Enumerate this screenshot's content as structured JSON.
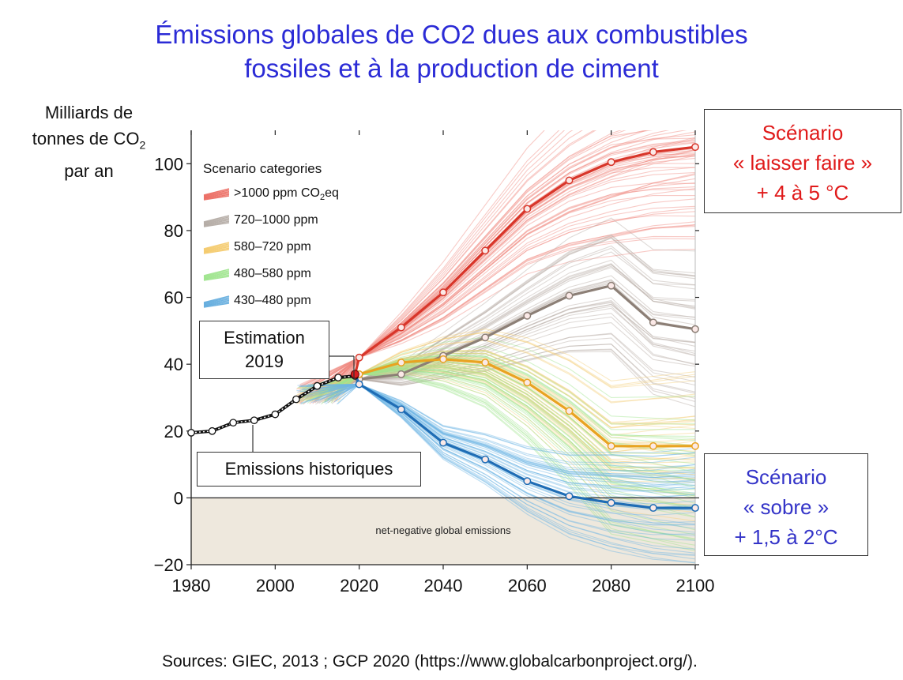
{
  "title_line1": "Émissions globales de CO2 dues aux combustibles",
  "title_line2": "fossiles et à la production de ciment",
  "ylabel_line1": "Milliards de",
  "ylabel_line2": "tonnes de CO",
  "ylabel_sub": "2",
  "ylabel_line3": "par an",
  "estimation_line1": "Estimation",
  "estimation_line2": "2019",
  "historic_label": "Emissions historiques",
  "laisser_faire_line1": "Scénario",
  "laisser_faire_line2": "« laisser faire »",
  "laisser_faire_line3": "+ 4 à 5 °C",
  "sobre_line1": "Scénario",
  "sobre_line2": "« sobre »",
  "sobre_line3": "+ 1,5 à 2°C",
  "net_negative_label": "net-negative global emissions",
  "legend_title": "Scenario categories",
  "source": "Sources: GIEC, 2013 ; GCP 2020 (https://www.globalcarbonproject.org/).",
  "chart_data": {
    "type": "line",
    "xlim": [
      1980,
      2100
    ],
    "ylim": [
      -20,
      110
    ],
    "xticks": [
      1980,
      2000,
      2020,
      2040,
      2060,
      2080,
      2100
    ],
    "yticks": [
      -20,
      0,
      20,
      40,
      60,
      80,
      100
    ],
    "ytick_labels": [
      "−20",
      "0",
      "20",
      "40",
      "60",
      "80",
      "100"
    ],
    "grid": false,
    "legend_position": "top-left",
    "legend": [
      {
        "label": ">1000 ppm CO",
        "sub": "2",
        "suffix": "eq",
        "color": "#e8554a"
      },
      {
        "label": "720–1000 ppm",
        "sub": "",
        "suffix": "",
        "color": "#a89e96"
      },
      {
        "label": "580–720 ppm",
        "sub": "",
        "suffix": "",
        "color": "#f2c255"
      },
      {
        "label": "480–580 ppm",
        "sub": "",
        "suffix": "",
        "color": "#8fe07a"
      },
      {
        "label": "430–480 ppm",
        "sub": "",
        "suffix": "",
        "color": "#4a9fd8"
      }
    ],
    "historical": {
      "name": "Emissions historiques",
      "x": [
        1980,
        1985,
        1990,
        1995,
        2000,
        2005,
        2010,
        2015,
        2019
      ],
      "y": [
        19.5,
        20,
        22.5,
        23.2,
        25,
        29.5,
        33.5,
        36,
        36.5
      ]
    },
    "series": [
      {
        "category": ">1000 ppm CO2eq",
        "color": "#d8362a",
        "x": [
          2020,
          2030,
          2040,
          2050,
          2060,
          2070,
          2080,
          2090,
          2100
        ],
        "y": [
          42,
          51,
          61.5,
          74,
          86.5,
          95,
          100.5,
          103.5,
          105
        ]
      },
      {
        "category": "720–1000 ppm",
        "color": "#8c7f76",
        "x": [
          2020,
          2030,
          2040,
          2050,
          2060,
          2070,
          2080,
          2090,
          2100
        ],
        "y": [
          35.5,
          37,
          42.5,
          48,
          54.5,
          60.5,
          63.5,
          52.5,
          50.5
        ]
      },
      {
        "category": "580–720 ppm",
        "color": "#e8a321",
        "x": [
          2020,
          2030,
          2040,
          2050,
          2060,
          2070,
          2080,
          2090,
          2100
        ],
        "y": [
          37,
          40.5,
          41.5,
          40.5,
          34.5,
          26,
          15.5,
          15.5,
          15.5
        ]
      },
      {
        "category": "430–480 ppm",
        "color": "#1f6db5",
        "x": [
          2020,
          2030,
          2040,
          2050,
          2060,
          2070,
          2080,
          2090,
          2100
        ],
        "y": [
          34,
          26.5,
          16.5,
          11.5,
          5,
          0.5,
          -1.5,
          -3,
          -3
        ]
      }
    ],
    "estimate_2019": {
      "x": 2019,
      "y": 37,
      "color": "#d91e1e"
    }
  }
}
